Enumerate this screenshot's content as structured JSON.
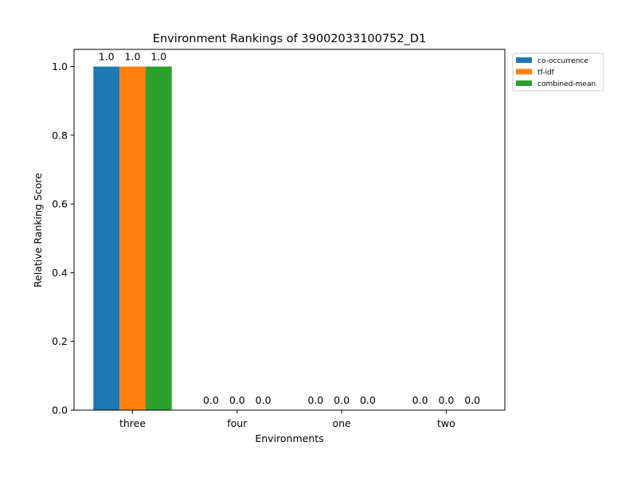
{
  "chart_data": {
    "type": "bar",
    "title": "Environment Rankings of 39002033100752_D1",
    "xlabel": "Environments",
    "ylabel": "Relative Ranking Score",
    "categories": [
      "three",
      "four",
      "one",
      "two"
    ],
    "ylim": [
      0,
      1.05
    ],
    "yticks": [
      "0.0",
      "0.2",
      "0.4",
      "0.6",
      "0.8",
      "1.0"
    ],
    "grid": false,
    "legend_position": "outside-top-right",
    "series": [
      {
        "name": "co-occurrence",
        "color": "#1f77b4",
        "values": [
          1.0,
          0.0,
          0.0,
          0.0
        ],
        "labels": [
          "1.0",
          "0.0",
          "0.0",
          "0.0"
        ]
      },
      {
        "name": "tf-idf",
        "color": "#ff7f0e",
        "values": [
          1.0,
          0.0,
          0.0,
          0.0
        ],
        "labels": [
          "1.0",
          "0.0",
          "0.0",
          "0.0"
        ]
      },
      {
        "name": "combined-mean",
        "color": "#2ca02c",
        "values": [
          1.0,
          0.0,
          0.0,
          0.0
        ],
        "labels": [
          "1.0",
          "0.0",
          "0.0",
          "0.0"
        ]
      }
    ]
  }
}
